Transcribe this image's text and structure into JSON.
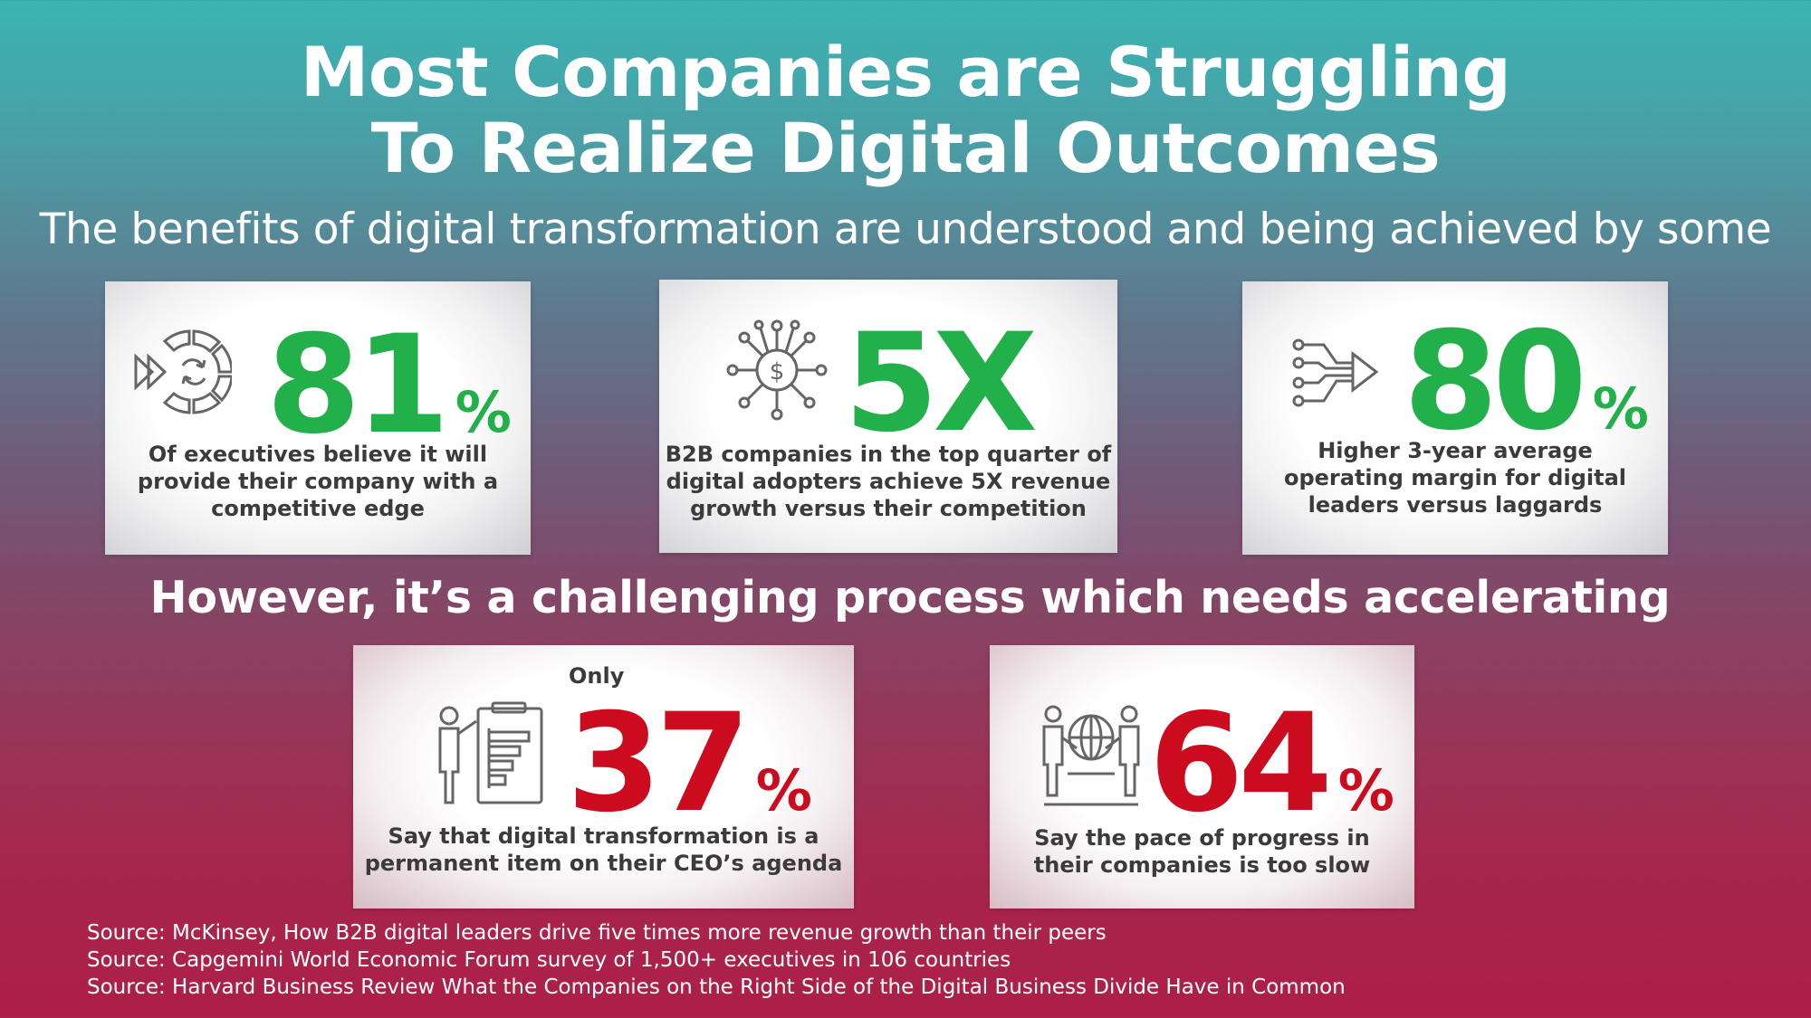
{
  "title": {
    "line1": "Most Companies are Struggling",
    "line2": "To Realize Digital Outcomes"
  },
  "subtitle": "The benefits of digital transformation are understood and being achieved by some",
  "section2_heading": "However, it’s a challenging process which needs accelerating",
  "cards": [
    {
      "icon": "fast-forward-cycle-icon",
      "value": "81",
      "suffix": "%",
      "description": [
        "Of executives believe it will",
        "provide their company with a",
        "competitive edge"
      ]
    },
    {
      "icon": "dollar-network-icon",
      "value": "5X",
      "suffix": "",
      "description": [
        "B2B companies in the top quarter of",
        "digital adopters achieve 5X revenue",
        "growth versus their competition"
      ]
    },
    {
      "icon": "circuit-arrow-icon",
      "value": "80",
      "suffix": "%",
      "description": [
        "Higher 3-year average",
        "operating margin for digital",
        "leaders versus laggards"
      ]
    },
    {
      "icon": "presenter-chart-icon",
      "prefix": "Only",
      "value": "37",
      "suffix": "%",
      "description": [
        "Say that digital transformation is a",
        "permanent item on their CEO’s agenda"
      ]
    },
    {
      "icon": "handshake-globe-icon",
      "value": "64",
      "suffix": "%",
      "description": [
        "Say the pace of progress in",
        "their companies is too slow"
      ]
    }
  ],
  "colors": {
    "positive": "#22b04b",
    "negative": "#cc0c1e",
    "text_dark": "#3b3b3b"
  },
  "sources": [
    "Source: McKinsey, How B2B digital leaders drive five times more revenue growth than their peers",
    "Source: Capgemini World Economic Forum survey of 1,500+ executives in 106 countries",
    "Source: Harvard Business Review What the Companies on the Right Side of the Digital Business Divide Have in Common"
  ]
}
